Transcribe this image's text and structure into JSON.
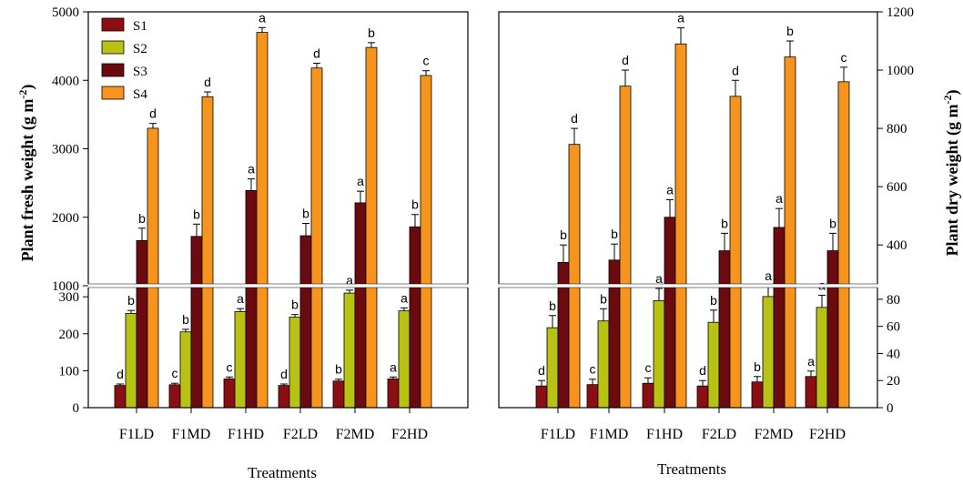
{
  "chart_data": [
    {
      "type": "bar",
      "panel": "left",
      "ylabel": "Plant fresh weight (g m-2)",
      "ylabel_main": "Plant fresh weight (g m",
      "ylabel_sup": "-2",
      "ylabel_close": ")",
      "xlabel": "Treatments",
      "axis_side": "left",
      "categories": [
        "F1LD",
        "F1MD",
        "F1HD",
        "F2LD",
        "F2MD",
        "F2HD"
      ],
      "y_broken_axis": {
        "lower": {
          "range": [
            0,
            330
          ],
          "ticks": [
            "0",
            "100",
            "200",
            "300"
          ],
          "tick_values": [
            0,
            100,
            200,
            300
          ]
        },
        "upper": {
          "range": [
            1000,
            5000
          ],
          "ticks": [
            "1000",
            "2000",
            "3000",
            "4000",
            "5000"
          ],
          "tick_values": [
            1000,
            2000,
            3000,
            4000,
            5000
          ]
        }
      },
      "legend": {
        "position": "top-left",
        "entries": [
          "S1",
          "S2",
          "S3",
          "S4"
        ]
      },
      "series": [
        {
          "name": "S1",
          "color": "#8b0f12",
          "values": [
            60,
            62,
            78,
            60,
            72,
            78
          ],
          "errors": [
            4,
            4,
            5,
            4,
            5,
            5
          ],
          "letters": [
            "d",
            "c",
            "c",
            "d",
            "b",
            "a"
          ]
        },
        {
          "name": "S2",
          "color": "#b7c214",
          "values": [
            255,
            205,
            260,
            245,
            310,
            262
          ],
          "errors": [
            8,
            7,
            8,
            7,
            8,
            8
          ],
          "letters": [
            "b",
            "b",
            "a",
            "b",
            "a",
            "a"
          ]
        },
        {
          "name": "S3",
          "color": "#6b0a0f",
          "values": [
            1660,
            1720,
            2390,
            1730,
            2210,
            1860
          ],
          "errors": [
            180,
            180,
            170,
            180,
            170,
            180
          ],
          "letters": [
            "b",
            "b",
            "a",
            "b",
            "a",
            "b"
          ]
        },
        {
          "name": "S4",
          "color": "#f7941d",
          "values": [
            3300,
            3760,
            4700,
            4180,
            4480,
            4070
          ],
          "errors": [
            70,
            70,
            70,
            70,
            70,
            70
          ],
          "letters": [
            "d",
            "d",
            "a",
            "d",
            "b",
            "c"
          ]
        }
      ]
    },
    {
      "type": "bar",
      "panel": "right",
      "ylabel": "Plant dry weight (g m-2)",
      "ylabel_main": "Plant dry weight (g m",
      "ylabel_sup": "-2",
      "ylabel_close": ")",
      "xlabel": "Treatments",
      "axis_side": "right",
      "categories": [
        "F1LD",
        "F1MD",
        "F1HD",
        "F2LD",
        "F2MD",
        "F2HD"
      ],
      "y_broken_axis": {
        "lower": {
          "range": [
            0,
            90
          ],
          "ticks": [
            "0",
            "20",
            "40",
            "60",
            "80"
          ],
          "tick_values": [
            0,
            20,
            40,
            60,
            80
          ]
        },
        "upper": {
          "range": [
            260,
            1200
          ],
          "ticks": [
            "400",
            "600",
            "800",
            "1000",
            "1200"
          ],
          "tick_values": [
            400,
            600,
            800,
            1000,
            1200
          ]
        }
      },
      "series": [
        {
          "name": "S1",
          "color": "#8b0f12",
          "values": [
            16,
            17,
            18,
            16,
            19,
            23
          ],
          "errors": [
            4,
            4,
            4,
            4,
            4,
            4
          ],
          "letters": [
            "d",
            "c",
            "c",
            "d",
            "b",
            "a"
          ]
        },
        {
          "name": "S2",
          "color": "#b7c214",
          "values": [
            59,
            64,
            79,
            63,
            82,
            74
          ],
          "errors": [
            9,
            9,
            9,
            9,
            9,
            9
          ],
          "letters": [
            "b",
            "b",
            "a",
            "b",
            "a",
            "a"
          ]
        },
        {
          "name": "S3",
          "color": "#6b0a0f",
          "values": [
            340,
            348,
            495,
            380,
            460,
            380
          ],
          "errors": [
            60,
            55,
            60,
            60,
            65,
            60
          ],
          "letters": [
            "b",
            "b",
            "a",
            "b",
            "a",
            "b"
          ]
        },
        {
          "name": "S4",
          "color": "#f7941d",
          "values": [
            745,
            945,
            1090,
            910,
            1045,
            960
          ],
          "errors": [
            55,
            55,
            55,
            55,
            55,
            50
          ],
          "letters": [
            "d",
            "d",
            "a",
            "d",
            "b",
            "c"
          ]
        }
      ]
    }
  ]
}
